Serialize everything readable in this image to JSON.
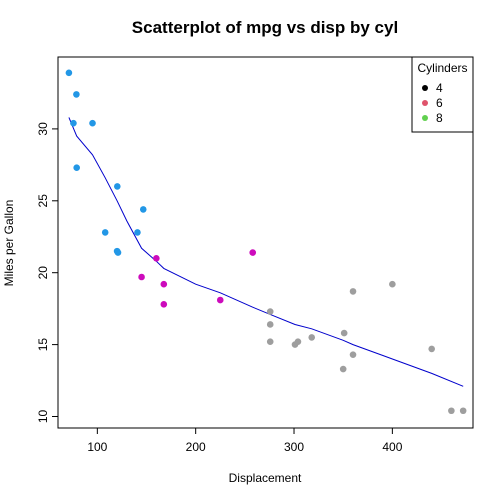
{
  "chart_data": {
    "type": "scatter",
    "title": "Scatterplot of mpg vs disp by cyl",
    "xlabel": "Displacement",
    "ylabel": "Miles per Gallon",
    "xlim": [
      60,
      482
    ],
    "ylim": [
      9.2,
      35.0
    ],
    "xticks": [
      100,
      200,
      300,
      400
    ],
    "yticks": [
      10,
      15,
      20,
      25,
      30
    ],
    "grid": false,
    "legend": {
      "title": "Cylinders",
      "position": "top-right",
      "entries": [
        {
          "label": "4",
          "color": "#000000"
        },
        {
          "label": "6",
          "color": "#DF536B"
        },
        {
          "label": "8",
          "color": "#61D04F"
        }
      ]
    },
    "point_colors": {
      "4": "#2297E6",
      "6": "#CD0BBC",
      "8": "#9E9E9E"
    },
    "series": [
      {
        "cyl": "4",
        "points": [
          [
            108,
            22.8
          ],
          [
            146.7,
            24.4
          ],
          [
            140.8,
            22.8
          ],
          [
            78.7,
            32.4
          ],
          [
            75.7,
            30.4
          ],
          [
            71.1,
            33.9
          ],
          [
            120.1,
            21.5
          ],
          [
            79,
            27.3
          ],
          [
            120.3,
            26
          ],
          [
            95.1,
            30.4
          ],
          [
            121,
            21.4
          ]
        ]
      },
      {
        "cyl": "6",
        "points": [
          [
            160,
            21
          ],
          [
            258,
            21.4
          ],
          [
            225,
            18.1
          ],
          [
            167.6,
            19.2
          ],
          [
            167.6,
            17.8
          ],
          [
            145,
            19.7
          ]
        ]
      },
      {
        "cyl": "8",
        "points": [
          [
            360,
            18.7
          ],
          [
            360,
            14.3
          ],
          [
            275.8,
            16.4
          ],
          [
            275.8,
            17.3
          ],
          [
            275.8,
            15.2
          ],
          [
            472,
            10.4
          ],
          [
            460,
            10.4
          ],
          [
            440,
            14.7
          ],
          [
            318,
            15.5
          ],
          [
            304,
            15.2
          ],
          [
            350,
            13.3
          ],
          [
            400,
            19.2
          ],
          [
            351,
            15.8
          ],
          [
            301,
            15
          ]
        ]
      }
    ],
    "smooth_line": {
      "color": "#0000CC",
      "points": [
        [
          71.1,
          30.8
        ],
        [
          79,
          29.5
        ],
        [
          95.1,
          28.2
        ],
        [
          108,
          26.6
        ],
        [
          120.1,
          25.0
        ],
        [
          130,
          23.6
        ],
        [
          145,
          21.7
        ],
        [
          160,
          20.8
        ],
        [
          167.6,
          20.3
        ],
        [
          200,
          19.2
        ],
        [
          225,
          18.6
        ],
        [
          258,
          17.6
        ],
        [
          275.8,
          17.1
        ],
        [
          301,
          16.4
        ],
        [
          318,
          16.1
        ],
        [
          350,
          15.3
        ],
        [
          360,
          15.0
        ],
        [
          400,
          14.0
        ],
        [
          440,
          13.0
        ],
        [
          472,
          12.1
        ]
      ]
    }
  }
}
